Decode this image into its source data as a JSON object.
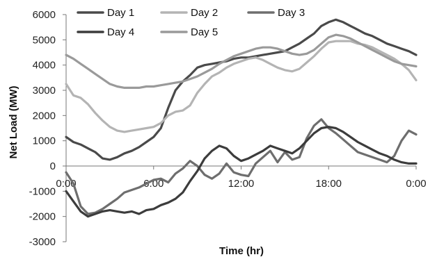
{
  "chart_data": {
    "type": "line",
    "title": "",
    "xlabel": "Time (hr)",
    "ylabel": "Net Load (MW)",
    "ylim": [
      -3000,
      6000
    ],
    "yticks": [
      -3000,
      -2000,
      -1000,
      0,
      1000,
      2000,
      3000,
      4000,
      5000,
      6000
    ],
    "xlim": [
      0,
      24
    ],
    "xticks": [
      {
        "value": 0,
        "label": "0:00"
      },
      {
        "value": 6,
        "label": "6:00"
      },
      {
        "value": 12,
        "label": "12:00"
      },
      {
        "value": 18,
        "label": "18:00"
      },
      {
        "value": 24,
        "label": "0:00"
      }
    ],
    "grid": false,
    "legend": {
      "placement": "top",
      "columns": 3
    },
    "series": [
      {
        "name": "Day 1",
        "color": "#4a4a4a",
        "x": [
          0,
          0.5,
          1,
          1.5,
          2,
          2.5,
          3,
          3.5,
          4,
          4.5,
          5,
          5.5,
          6,
          6.5,
          7,
          7.5,
          8,
          8.5,
          9,
          9.5,
          10,
          10.5,
          11,
          11.5,
          12,
          12.5,
          13,
          13.5,
          14,
          14.5,
          15,
          15.5,
          16,
          16.5,
          17,
          17.5,
          18,
          18.5,
          19,
          19.5,
          20,
          20.5,
          21,
          21.5,
          22,
          22.5,
          23,
          23.5,
          24
        ],
        "values": [
          1150,
          950,
          850,
          700,
          550,
          300,
          250,
          350,
          500,
          600,
          750,
          950,
          1150,
          1500,
          2300,
          3000,
          3350,
          3600,
          3900,
          4000,
          4050,
          4100,
          4150,
          4250,
          4300,
          4300,
          4350,
          4400,
          4450,
          4500,
          4550,
          4700,
          4850,
          5050,
          5250,
          5550,
          5700,
          5800,
          5700,
          5550,
          5400,
          5250,
          5150,
          5000,
          4850,
          4750,
          4650,
          4550,
          4400
        ]
      },
      {
        "name": "Day 2",
        "color": "#b4b4b4",
        "x": [
          0,
          0.5,
          1,
          1.5,
          2,
          2.5,
          3,
          3.5,
          4,
          4.5,
          5,
          5.5,
          6,
          6.5,
          7,
          7.5,
          8,
          8.5,
          9,
          9.5,
          10,
          10.5,
          11,
          11.5,
          12,
          12.5,
          13,
          13.5,
          14,
          14.5,
          15,
          15.5,
          16,
          16.5,
          17,
          17.5,
          18,
          18.5,
          19,
          19.5,
          20,
          20.5,
          21,
          21.5,
          22,
          22.5,
          23,
          23.5,
          24
        ],
        "values": [
          3250,
          2800,
          2700,
          2450,
          2100,
          1800,
          1550,
          1400,
          1350,
          1400,
          1450,
          1500,
          1550,
          1700,
          2000,
          2150,
          2200,
          2400,
          2900,
          3250,
          3550,
          3700,
          3900,
          4050,
          4150,
          4250,
          4300,
          4200,
          4050,
          3900,
          3800,
          3750,
          3850,
          4100,
          4350,
          4650,
          4900,
          4950,
          4950,
          4950,
          4850,
          4800,
          4700,
          4550,
          4400,
          4250,
          4050,
          3800,
          3400
        ]
      },
      {
        "name": "Day 3",
        "color": "#6e6e6e",
        "x": [
          0,
          0.5,
          1,
          1.5,
          2,
          2.5,
          3,
          3.5,
          4,
          4.5,
          5,
          5.5,
          6,
          6.5,
          7,
          7.5,
          8,
          8.5,
          9,
          9.5,
          10,
          10.5,
          11,
          11.5,
          12,
          12.5,
          13,
          13.5,
          14,
          14.5,
          15,
          15.5,
          16,
          16.5,
          17,
          17.5,
          18,
          18.5,
          19,
          19.5,
          20,
          20.5,
          21,
          21.5,
          22,
          22.5,
          23,
          23.5,
          24
        ],
        "values": [
          -250,
          -700,
          -1600,
          -1900,
          -1850,
          -1700,
          -1500,
          -1300,
          -1050,
          -950,
          -850,
          -700,
          -550,
          -500,
          -650,
          -300,
          -100,
          200,
          0,
          -350,
          -500,
          -300,
          100,
          -250,
          -350,
          -400,
          100,
          350,
          600,
          150,
          550,
          250,
          350,
          1100,
          1600,
          1850,
          1500,
          1300,
          1050,
          800,
          550,
          450,
          350,
          250,
          150,
          400,
          1000,
          1400,
          1250
        ]
      },
      {
        "name": "Day 4",
        "color": "#3c3c3c",
        "x": [
          0,
          0.5,
          1,
          1.5,
          2,
          2.5,
          3,
          3.5,
          4,
          4.5,
          5,
          5.5,
          6,
          6.5,
          7,
          7.5,
          8,
          8.5,
          9,
          9.5,
          10,
          10.5,
          11,
          11.5,
          12,
          12.5,
          13,
          13.5,
          14,
          14.5,
          15,
          15.5,
          16,
          16.5,
          17,
          17.5,
          18,
          18.5,
          19,
          19.5,
          20,
          20.5,
          21,
          21.5,
          22,
          22.5,
          23,
          23.5,
          24
        ],
        "values": [
          -1000,
          -1400,
          -1800,
          -2000,
          -1900,
          -1800,
          -1750,
          -1800,
          -1850,
          -1800,
          -1900,
          -1750,
          -1700,
          -1550,
          -1450,
          -1300,
          -1050,
          -600,
          -200,
          300,
          600,
          800,
          700,
          400,
          200,
          300,
          450,
          600,
          800,
          700,
          600,
          500,
          700,
          1000,
          1300,
          1500,
          1550,
          1500,
          1350,
          1150,
          950,
          800,
          650,
          500,
          400,
          250,
          150,
          100,
          100
        ]
      },
      {
        "name": "Day 5",
        "color": "#9a9a9a",
        "x": [
          0,
          0.5,
          1,
          1.5,
          2,
          2.5,
          3,
          3.5,
          4,
          4.5,
          5,
          5.5,
          6,
          6.5,
          7,
          7.5,
          8,
          8.5,
          9,
          9.5,
          10,
          10.5,
          11,
          11.5,
          12,
          12.5,
          13,
          13.5,
          14,
          14.5,
          15,
          15.5,
          16,
          16.5,
          17,
          17.5,
          18,
          18.5,
          19,
          19.5,
          20,
          20.5,
          21,
          21.5,
          22,
          22.5,
          23,
          23.5,
          24
        ],
        "values": [
          4400,
          4250,
          4050,
          3850,
          3650,
          3450,
          3250,
          3150,
          3100,
          3100,
          3100,
          3150,
          3150,
          3200,
          3250,
          3300,
          3350,
          3450,
          3550,
          3700,
          3850,
          4050,
          4200,
          4350,
          4450,
          4550,
          4650,
          4700,
          4700,
          4650,
          4550,
          4450,
          4400,
          4450,
          4600,
          4850,
          5100,
          5200,
          5150,
          5050,
          4900,
          4750,
          4600,
          4450,
          4300,
          4150,
          4050,
          4000,
          3950
        ]
      }
    ]
  }
}
